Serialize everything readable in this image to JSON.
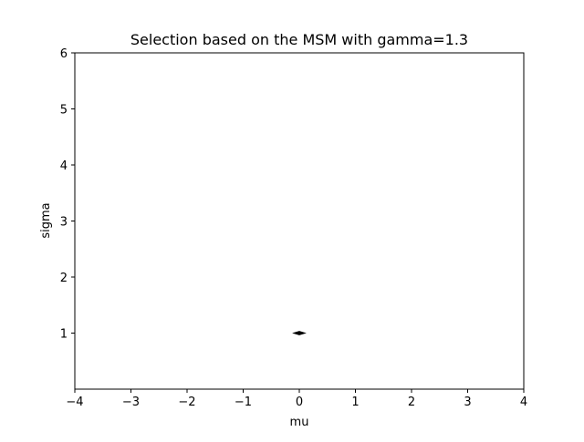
{
  "chart_data": {
    "type": "line",
    "title": "Selection based on the MSM with gamma=1.3",
    "xlabel": "mu",
    "ylabel": "sigma",
    "xlim": [
      -4,
      4
    ],
    "ylim": [
      0,
      6
    ],
    "xticks": [
      -4,
      -3,
      -2,
      -1,
      0,
      1,
      2,
      3,
      4
    ],
    "xtick_labels": [
      "−4",
      "−3",
      "−2",
      "−1",
      "0",
      "1",
      "2",
      "3",
      "4"
    ],
    "yticks": [
      1,
      2,
      3,
      4,
      5,
      6
    ],
    "ytick_labels": [
      "1",
      "2",
      "3",
      "4",
      "5",
      "6"
    ],
    "grid": false,
    "series": [
      {
        "color": "#000000",
        "points": [
          [
            -0.1,
            1.0
          ],
          [
            0.0,
            1.03
          ],
          [
            0.1,
            1.0
          ],
          [
            0.0,
            0.97
          ],
          [
            -0.1,
            1.0
          ]
        ]
      }
    ]
  }
}
